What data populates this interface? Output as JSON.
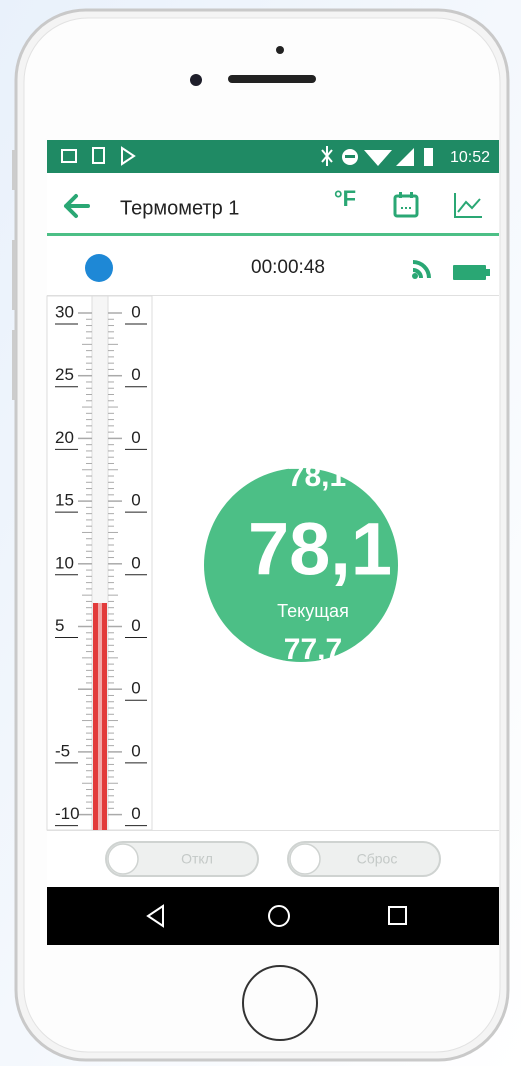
{
  "status_bar": {
    "time": "10:52"
  },
  "app_bar": {
    "title": "Термометр 1",
    "unit": "°F"
  },
  "timer": "00:00:48",
  "scale": {
    "left_labels": [
      "30",
      "25",
      "20",
      "15",
      "10",
      "5",
      null,
      "-5",
      "-10"
    ],
    "right_labels": [
      "0",
      "0",
      "0",
      "0",
      "0",
      "0",
      "0",
      "0",
      "0"
    ]
  },
  "gauge": {
    "max": "78,1",
    "current": "78,1",
    "current_label": "Текущая",
    "min": "77,7"
  },
  "buttons": [
    "Откл",
    "Сброс"
  ]
}
